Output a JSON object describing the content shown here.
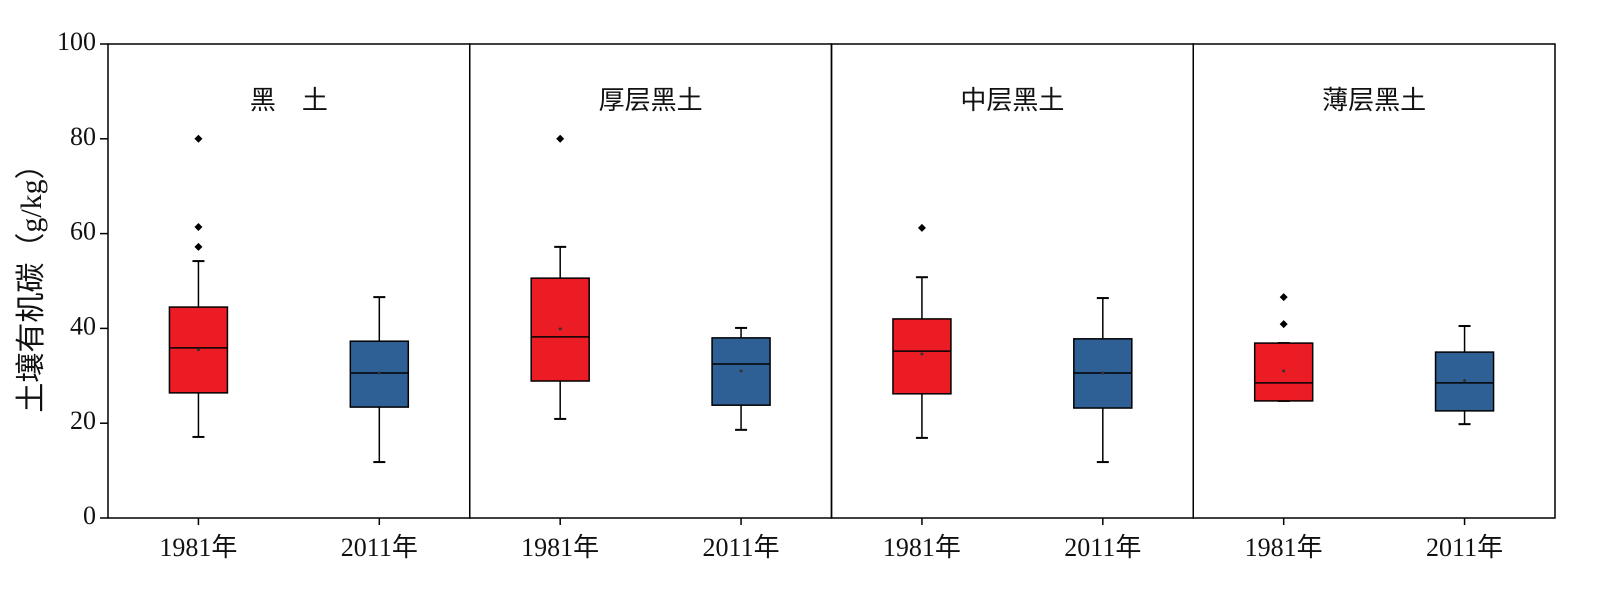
{
  "chart_data": {
    "type": "box",
    "ylabel": "土壤有机碳（g/kg）",
    "ylim": [
      0,
      100
    ],
    "yticks": [
      0,
      20,
      40,
      60,
      80,
      100
    ],
    "panels": [
      {
        "title": "黑　土",
        "categories": [
          "1981年",
          "2011年"
        ],
        "colors": [
          "#ec1c24",
          "#2e6096"
        ],
        "boxes": [
          {
            "min": 17.1,
            "q1": 26.4,
            "median": 35.9,
            "q3": 44.5,
            "max": 54.2,
            "mean": 35.5,
            "outliers": [
              80,
              61.4,
              57.2
            ]
          },
          {
            "min": 11.8,
            "q1": 23.4,
            "median": 30.6,
            "q3": 37.3,
            "max": 46.6,
            "mean": 30.6,
            "outliers": []
          }
        ]
      },
      {
        "title": "厚层黑土",
        "categories": [
          "1981年",
          "2011年"
        ],
        "colors": [
          "#ec1c24",
          "#2e6096"
        ],
        "boxes": [
          {
            "min": 20.9,
            "q1": 28.9,
            "median": 38.2,
            "q3": 50.6,
            "max": 57.2,
            "mean": 39.9,
            "outliers": [
              80
            ]
          },
          {
            "min": 18.6,
            "q1": 23.8,
            "median": 32.5,
            "q3": 38.0,
            "max": 40.1,
            "mean": 31.0,
            "outliers": []
          }
        ]
      },
      {
        "title": "中层黑土",
        "categories": [
          "1981年",
          "2011年"
        ],
        "colors": [
          "#ec1c24",
          "#2e6096"
        ],
        "boxes": [
          {
            "min": 16.9,
            "q1": 26.2,
            "median": 35.2,
            "q3": 42.0,
            "max": 50.8,
            "mean": 34.6,
            "outliers": [
              61.2
            ]
          },
          {
            "min": 11.8,
            "q1": 23.2,
            "median": 30.6,
            "q3": 37.8,
            "max": 46.4,
            "mean": 30.6,
            "outliers": []
          }
        ]
      },
      {
        "title": "薄层黑土",
        "categories": [
          "1981年",
          "2011年"
        ],
        "colors": [
          "#ec1c24",
          "#2e6096"
        ],
        "boxes": [
          {
            "min": 24.7,
            "q1": 24.7,
            "median": 28.5,
            "q3": 36.9,
            "max": 36.9,
            "mean": 31.0,
            "outliers": [
              46.6,
              40.9
            ]
          },
          {
            "min": 19.8,
            "q1": 22.6,
            "median": 28.5,
            "q3": 35.0,
            "max": 40.5,
            "mean": 29.0,
            "outliers": []
          }
        ]
      }
    ]
  }
}
